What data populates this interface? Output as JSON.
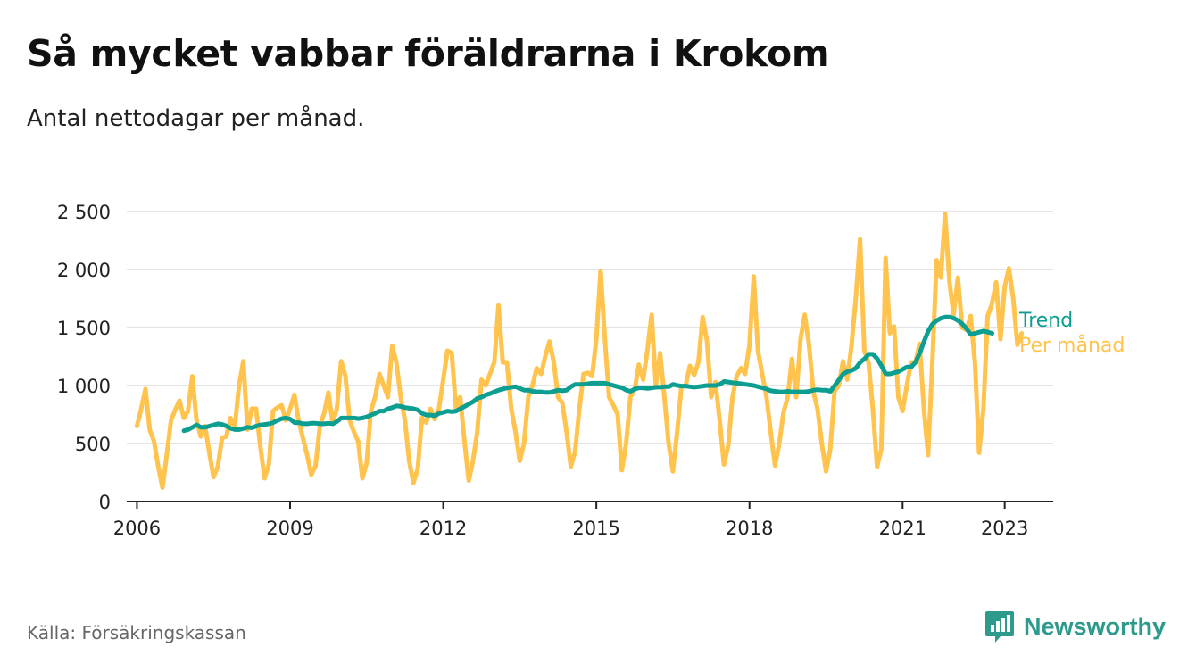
{
  "title": "Så mycket vabbar föräldrarna i Krokom",
  "subtitle": "Antal nettodagar per månad.",
  "source": "Källa: Försäkringskassan",
  "brand": "Newsworthy",
  "colors": {
    "monthly": "#ffc34e",
    "trend": "#0c9e91",
    "grid": "#dcdcdc",
    "axis": "#222222",
    "brand": "#2d9a8c"
  },
  "chart_data": {
    "type": "line",
    "title": "Så mycket vabbar föräldrarna i Krokom",
    "subtitle": "Antal nettodagar per månad.",
    "xlabel": "",
    "ylabel": "",
    "xlim": [
      2005.8,
      2023.95
    ],
    "ylim": [
      0,
      2500
    ],
    "grid": true,
    "x_ticks": [
      {
        "value": 2006,
        "label": "2006"
      },
      {
        "value": 2009,
        "label": "2009"
      },
      {
        "value": 2012,
        "label": "2012"
      },
      {
        "value": 2015,
        "label": "2015"
      },
      {
        "value": 2018,
        "label": "2018"
      },
      {
        "value": 2021,
        "label": "2021"
      },
      {
        "value": 2023,
        "label": "2023"
      }
    ],
    "y_ticks": [
      {
        "value": 0,
        "label": "0"
      },
      {
        "value": 500,
        "label": "500"
      },
      {
        "value": 1000,
        "label": "1 000"
      },
      {
        "value": 1500,
        "label": "1 500"
      },
      {
        "value": 2000,
        "label": "2 000"
      },
      {
        "value": 2500,
        "label": "2 500"
      }
    ],
    "series": [
      {
        "name": "Per månad",
        "start": 2006.0,
        "step": 0.08333,
        "values": [
          650,
          800,
          970,
          620,
          520,
          300,
          120,
          400,
          700,
          790,
          870,
          720,
          780,
          1080,
          700,
          560,
          650,
          420,
          210,
          300,
          550,
          560,
          720,
          640,
          1000,
          1210,
          620,
          800,
          800,
          480,
          200,
          320,
          780,
          810,
          830,
          700,
          800,
          920,
          700,
          550,
          400,
          230,
          310,
          650,
          760,
          940,
          680,
          800,
          1210,
          1080,
          700,
          600,
          520,
          200,
          330,
          780,
          900,
          1100,
          1000,
          900,
          1340,
          1200,
          900,
          700,
          350,
          160,
          280,
          720,
          680,
          800,
          710,
          800,
          1050,
          1300,
          1280,
          800,
          900,
          520,
          180,
          350,
          600,
          1050,
          1000,
          1100,
          1200,
          1690,
          1200,
          1200,
          800,
          600,
          350,
          500,
          900,
          1000,
          1150,
          1100,
          1250,
          1380,
          1200,
          900,
          850,
          600,
          300,
          430,
          800,
          1100,
          1110,
          1080,
          1400,
          1990,
          1400,
          900,
          830,
          750,
          270,
          500,
          900,
          960,
          1180,
          1050,
          1300,
          1610,
          1000,
          1280,
          900,
          500,
          260,
          600,
          990,
          1000,
          1170,
          1090,
          1200,
          1590,
          1390,
          900,
          1030,
          700,
          320,
          480,
          900,
          1080,
          1150,
          1100,
          1350,
          1940,
          1300,
          1100,
          900,
          600,
          310,
          500,
          770,
          900,
          1230,
          900,
          1400,
          1610,
          1350,
          950,
          800,
          500,
          260,
          450,
          950,
          1000,
          1210,
          1050,
          1350,
          1750,
          2260,
          1300,
          1200,
          800,
          300,
          450,
          2100,
          1450,
          1510,
          900,
          780,
          1000,
          1200,
          1200,
          1360,
          800,
          400,
          1200,
          2080,
          1930,
          2480,
          1900,
          1610,
          1930,
          1500,
          1480,
          1600,
          1200,
          420,
          800,
          1600,
          1700,
          1890,
          1400,
          1850,
          2010,
          1750,
          1350,
          1450
        ]
      },
      {
        "name": "Trend",
        "start": 2006.92,
        "step": 0.08333,
        "values": [
          610,
          620,
          640,
          660,
          640,
          640,
          650,
          660,
          670,
          665,
          650,
          630,
          620,
          620,
          630,
          640,
          635,
          650,
          660,
          665,
          670,
          680,
          700,
          715,
          720,
          710,
          680,
          680,
          670,
          670,
          675,
          675,
          670,
          670,
          675,
          670,
          690,
          720,
          720,
          720,
          720,
          715,
          720,
          730,
          745,
          760,
          780,
          780,
          800,
          810,
          825,
          820,
          810,
          805,
          800,
          790,
          760,
          745,
          745,
          740,
          760,
          770,
          780,
          775,
          780,
          800,
          820,
          840,
          860,
          890,
          900,
          920,
          930,
          945,
          960,
          970,
          980,
          985,
          990,
          975,
          960,
          960,
          950,
          945,
          945,
          940,
          940,
          950,
          960,
          955,
          960,
          990,
          1010,
          1010,
          1010,
          1015,
          1020,
          1020,
          1020,
          1020,
          1010,
          1000,
          990,
          980,
          960,
          950,
          970,
          980,
          980,
          975,
          980,
          985,
          985,
          990,
          990,
          1010,
          1000,
          995,
          995,
          990,
          985,
          990,
          995,
          1000,
          1000,
          1000,
          1010,
          1035,
          1030,
          1025,
          1020,
          1015,
          1010,
          1005,
          1000,
          990,
          980,
          970,
          955,
          950,
          945,
          945,
          950,
          945,
          945,
          945,
          945,
          950,
          960,
          965,
          960,
          960,
          950,
          1000,
          1050,
          1100,
          1120,
          1130,
          1150,
          1200,
          1230,
          1270,
          1270,
          1230,
          1170,
          1100,
          1100,
          1110,
          1120,
          1140,
          1160,
          1160,
          1200,
          1280,
          1380,
          1470,
          1530,
          1560,
          1580,
          1590,
          1590,
          1580,
          1560,
          1530,
          1490,
          1440,
          1450,
          1460,
          1470,
          1460,
          1450
        ]
      }
    ]
  }
}
